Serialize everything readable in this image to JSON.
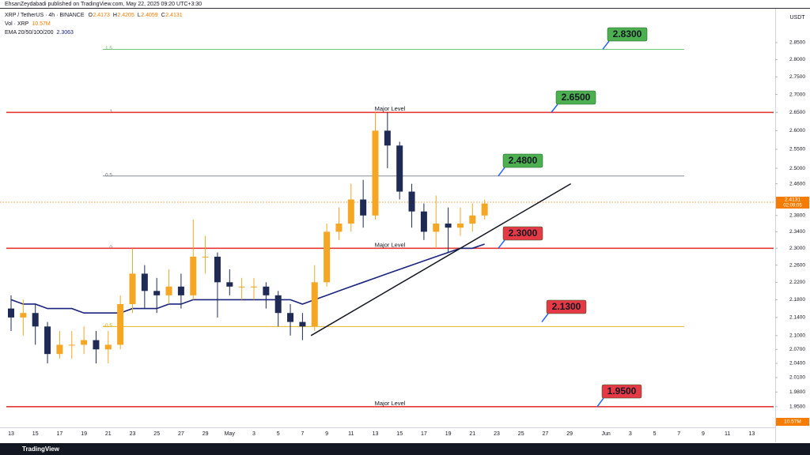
{
  "chart_data": {
    "type": "candlestick",
    "published": "EhsanZeydabadi published on TradingView.com, May 22, 2025 09:20 UTC+3:30",
    "title": "XRP / TetherUS · 4h · BINANCE",
    "ohlc_legend": {
      "labels": [
        "O",
        "H",
        "L",
        "C"
      ],
      "values": [
        2.4173,
        2.4205,
        2.4059,
        2.4131
      ]
    },
    "volume_title": "Vol · XRP",
    "volume_label": "10.57M",
    "ema_title": "EMA 20/50/100/200",
    "ema_last": 2.3063,
    "y_unit": "USDT",
    "last_price": 2.4131,
    "countdown": "02:09:05",
    "brand": "TradingView",
    "log_scale": true,
    "ylim": [
      1.91,
      2.95
    ],
    "yticks": [
      {
        "value": 2.85,
        "label": "2.8500"
      },
      {
        "value": 2.8,
        "label": "2.8000"
      },
      {
        "value": 2.75,
        "label": "2.7500"
      },
      {
        "value": 2.7,
        "label": "2.7000"
      },
      {
        "value": 2.65,
        "label": "2.6500"
      },
      {
        "value": 2.6,
        "label": "2.6000"
      },
      {
        "value": 2.55,
        "label": "2.5500"
      },
      {
        "value": 2.5,
        "label": "2.5000"
      },
      {
        "value": 2.46,
        "label": "2.4600"
      },
      {
        "value": 2.38,
        "label": "2.3800"
      },
      {
        "value": 2.34,
        "label": "2.3400"
      },
      {
        "value": 2.3,
        "label": "2.3000"
      },
      {
        "value": 2.26,
        "label": "2.2600"
      },
      {
        "value": 2.22,
        "label": "2.2200"
      },
      {
        "value": 2.18,
        "label": "2.1800"
      },
      {
        "value": 2.14,
        "label": "2.1400"
      },
      {
        "value": 2.1,
        "label": "2.1000"
      },
      {
        "value": 2.07,
        "label": "2.0700"
      },
      {
        "value": 2.04,
        "label": "2.0400"
      },
      {
        "value": 2.01,
        "label": "2.0100"
      },
      {
        "value": 1.98,
        "label": "1.9800"
      },
      {
        "value": 1.95,
        "label": "1.9500"
      }
    ],
    "categories": [
      "13",
      null,
      "15",
      null,
      "17",
      null,
      "19",
      null,
      "21",
      null,
      "23",
      null,
      "25",
      null,
      "27",
      null,
      "29",
      null,
      "May",
      null,
      "3",
      null,
      "5",
      null,
      "7",
      null,
      "9",
      null,
      "11",
      null,
      "13",
      null,
      "15",
      null,
      "17",
      null,
      "19",
      null,
      "21",
      null,
      "23",
      null,
      "25",
      null,
      "27",
      null,
      "29",
      null,
      null,
      "Jun",
      null,
      "3",
      null,
      "5",
      null,
      "7",
      null,
      "9",
      null,
      "11",
      null,
      "13",
      null
    ],
    "up_color": "#f5a623",
    "down_color": "#1f2b55",
    "open": [
      2.16,
      2.14,
      2.15,
      2.12,
      2.06,
      2.08,
      2.08,
      2.09,
      2.07,
      2.08,
      2.17,
      2.24,
      2.2,
      2.19,
      2.21,
      2.19,
      2.28,
      2.28,
      2.22,
      2.21,
      2.21,
      2.21,
      2.19,
      2.15,
      2.13,
      2.12,
      2.22,
      2.34,
      2.36,
      2.42,
      2.38,
      2.6,
      2.56,
      2.44,
      2.39,
      2.34,
      2.36,
      2.35,
      2.36,
      2.38,
      null,
      null,
      null,
      null,
      null,
      null,
      null,
      null,
      null,
      null,
      null,
      null,
      null,
      null,
      null,
      null,
      null,
      null,
      null,
      null,
      null,
      null,
      null
    ],
    "high": [
      2.19,
      2.18,
      2.17,
      2.13,
      2.11,
      2.11,
      2.12,
      2.11,
      2.11,
      2.19,
      2.3,
      2.26,
      2.23,
      2.25,
      2.24,
      2.37,
      2.33,
      2.29,
      2.25,
      2.23,
      2.23,
      2.22,
      2.2,
      2.17,
      2.15,
      2.26,
      2.36,
      2.4,
      2.46,
      2.47,
      2.65,
      2.65,
      2.57,
      2.46,
      2.41,
      2.43,
      2.4,
      2.4,
      2.41,
      2.42,
      null,
      null,
      null,
      null,
      null,
      null,
      null,
      null,
      null,
      null,
      null,
      null,
      null,
      null,
      null,
      null,
      null,
      null,
      null,
      null,
      null,
      null,
      null
    ],
    "low": [
      2.11,
      2.1,
      2.08,
      2.04,
      2.05,
      2.05,
      2.06,
      2.04,
      2.04,
      2.07,
      2.15,
      2.16,
      2.15,
      2.17,
      2.16,
      2.18,
      2.24,
      2.14,
      2.19,
      2.18,
      2.18,
      2.16,
      2.12,
      2.1,
      2.09,
      2.11,
      2.21,
      2.32,
      2.34,
      2.35,
      2.37,
      2.5,
      2.42,
      2.35,
      2.32,
      2.3,
      2.29,
      2.33,
      2.34,
      2.37,
      null,
      null,
      null,
      null,
      null,
      null,
      null,
      null,
      null,
      null,
      null,
      null,
      null,
      null,
      null,
      null,
      null,
      null,
      null,
      null,
      null,
      null,
      null
    ],
    "close": [
      2.14,
      2.15,
      2.12,
      2.06,
      2.08,
      2.08,
      2.09,
      2.07,
      2.08,
      2.17,
      2.24,
      2.2,
      2.19,
      2.21,
      2.19,
      2.28,
      2.28,
      2.22,
      2.21,
      2.21,
      2.21,
      2.19,
      2.15,
      2.13,
      2.12,
      2.22,
      2.34,
      2.36,
      2.42,
      2.38,
      2.6,
      2.56,
      2.44,
      2.39,
      2.34,
      2.36,
      2.35,
      2.36,
      2.38,
      2.41,
      null,
      null,
      null,
      null,
      null,
      null,
      null,
      null,
      null,
      null,
      null,
      null,
      null,
      null,
      null,
      null,
      null,
      null,
      null,
      null,
      null,
      null,
      null
    ],
    "ema": {
      "color": "#1a237e",
      "values": [
        2.18,
        2.17,
        2.17,
        2.16,
        2.16,
        2.16,
        2.15,
        2.15,
        2.15,
        2.15,
        2.16,
        2.16,
        2.16,
        2.17,
        2.17,
        2.18,
        2.18,
        2.18,
        2.18,
        2.18,
        2.18,
        2.18,
        2.18,
        2.18,
        2.17,
        2.18,
        2.19,
        2.2,
        2.21,
        2.22,
        2.23,
        2.24,
        2.25,
        2.26,
        2.27,
        2.28,
        2.29,
        2.3,
        2.3,
        2.31,
        null,
        null,
        null,
        null,
        null,
        null,
        null,
        null,
        null,
        null,
        null,
        null,
        null,
        null,
        null,
        null,
        null,
        null,
        null,
        null,
        null,
        null,
        null
      ]
    },
    "fib_levels": [
      {
        "value": 2.83,
        "label": "1.5",
        "color": "#66bb6a"
      },
      {
        "value": 2.65,
        "label": "1",
        "color": "#787b86"
      },
      {
        "value": 2.48,
        "label": "0.5",
        "color": "#787b86"
      },
      {
        "value": 2.3,
        "label": "0",
        "color": "#787b86"
      },
      {
        "value": 2.12,
        "label": "-0.5",
        "color": "#e0a800"
      }
    ],
    "key_levels": {
      "values": [
        2.65,
        2.3,
        1.95
      ],
      "color": "#e53935",
      "label": "Major Level"
    },
    "targets": [
      {
        "value": 2.83,
        "text": "2.8300",
        "color": "#4caf50"
      },
      {
        "value": 2.65,
        "text": "2.6500",
        "color": "#4caf50"
      },
      {
        "value": 2.48,
        "text": "2.4800",
        "color": "#4caf50"
      },
      {
        "value": 2.3,
        "text": "2.3000",
        "color": "#e53945"
      },
      {
        "value": 2.13,
        "text": "2.1300",
        "color": "#e53945"
      },
      {
        "value": 1.95,
        "text": "1.9500",
        "color": "#e53945"
      }
    ],
    "trendline": {
      "x": [
        24.7,
        46.1
      ],
      "values": [
        2.1,
        2.46
      ]
    }
  }
}
